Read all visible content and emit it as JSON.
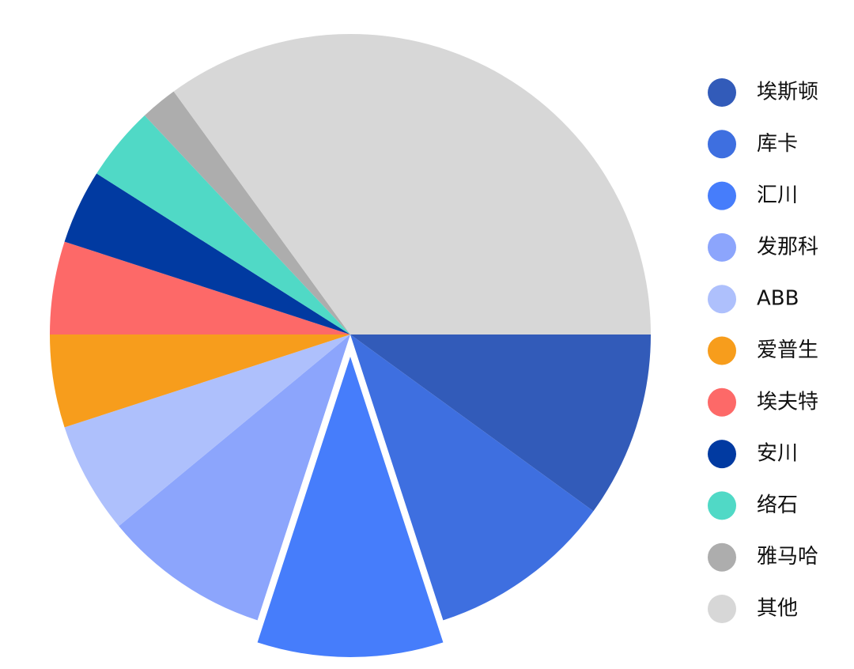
{
  "chart_data": {
    "type": "pie",
    "categories": [
      "埃斯顿",
      "库卡",
      "汇川",
      "发那科",
      "ABB",
      "爱普生",
      "埃夫特",
      "安川",
      "络石",
      "雅马哈",
      "其他"
    ],
    "values": [
      10,
      10,
      10,
      9,
      6,
      5,
      5,
      4,
      4,
      2,
      35
    ],
    "colors": [
      "#325bb9",
      "#3e6fe0",
      "#467dfb",
      "#8ca5fc",
      "#aec0fc",
      "#f79d1c",
      "#fd6968",
      "#013aa1",
      "#50d9c6",
      "#adadad",
      "#d7d7d7"
    ],
    "exploded": "汇川",
    "legend": "right"
  }
}
